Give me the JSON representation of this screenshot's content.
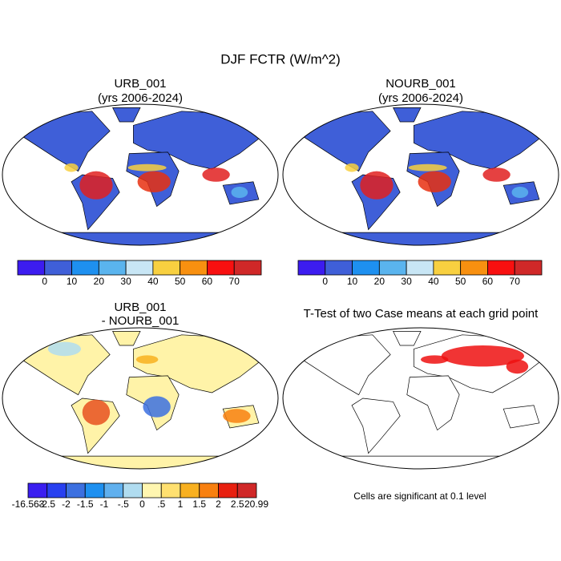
{
  "title": "DJF FCTR (W/m^2)",
  "panels": [
    {
      "title_lines": [
        "URB_001",
        "(yrs 2006-2024)"
      ]
    },
    {
      "title_lines": [
        "NOURB_001",
        "(yrs 2006-2024)"
      ]
    },
    {
      "title_lines": [
        "URB_001",
        "- NOURB_001"
      ]
    },
    {
      "title_lines": [
        "T-Test of two Case means at each grid point"
      ]
    }
  ],
  "colorbars": [
    {
      "labels": [
        "0",
        "10",
        "20",
        "30",
        "40",
        "50",
        "60",
        "70"
      ],
      "colors": [
        "#3c1cf0",
        "#3f5fd8",
        "#1e90f0",
        "#5ab4ee",
        "#c8e6f5",
        "#f8d040",
        "#f89010",
        "#f81010",
        "#d02828"
      ]
    },
    {
      "labels": [
        "0",
        "10",
        "20",
        "30",
        "40",
        "50",
        "60",
        "70"
      ],
      "colors": [
        "#3c1cf0",
        "#3f5fd8",
        "#1e90f0",
        "#5ab4ee",
        "#c8e6f5",
        "#f8d040",
        "#f89010",
        "#f81010",
        "#d02828"
      ]
    },
    {
      "labels": [
        "-16.563",
        "-2.5",
        "-2",
        "-1.5",
        "-1",
        "-.5",
        "0",
        ".5",
        "1",
        "1.5",
        "2",
        "2.5",
        "20.99"
      ],
      "colors": [
        "#3a1ef0",
        "#2840f0",
        "#3c70e0",
        "#1e90f0",
        "#60b0ee",
        "#b0dcf0",
        "#fff6b0",
        "#ffe070",
        "#f8b020",
        "#f88010",
        "#e82010",
        "#d02828"
      ]
    }
  ],
  "footnote": "Cells are significant at 0.1 level"
}
